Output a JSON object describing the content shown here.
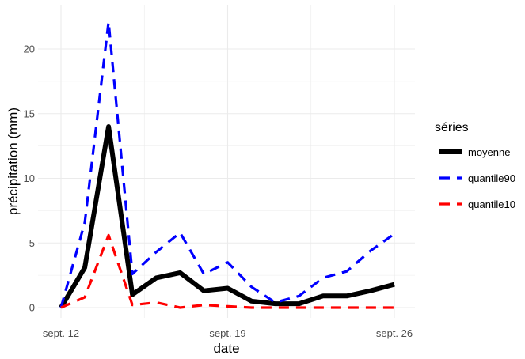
{
  "chart_data": {
    "type": "line",
    "xlabel": "date",
    "ylabel": "précipitation (mm)",
    "x": [
      "2023-09-12",
      "2023-09-13",
      "2023-09-14",
      "2023-09-15",
      "2023-09-16",
      "2023-09-17",
      "2023-09-18",
      "2023-09-19",
      "2023-09-20",
      "2023-09-21",
      "2023-09-22",
      "2023-09-23",
      "2023-09-24",
      "2023-09-25",
      "2023-09-26"
    ],
    "x_ticks": [
      "sept. 12",
      "sept. 19",
      "sept. 26"
    ],
    "y_ticks": [
      "0",
      "5",
      "10",
      "15",
      "20"
    ],
    "ylim": [
      -0.6,
      22.2
    ],
    "grid": true,
    "legend": {
      "title": "séries",
      "placement": "right"
    },
    "series": [
      {
        "name": "moyenne",
        "color": "#000000",
        "style": "solid",
        "values": [
          0,
          3.1,
          14.0,
          1.0,
          2.3,
          2.7,
          1.3,
          1.5,
          0.5,
          0.3,
          0.3,
          0.9,
          0.9,
          1.3,
          1.8
        ]
      },
      {
        "name": "quantile90",
        "color": "#0000ff",
        "style": "dashed",
        "values": [
          0,
          6.6,
          22.1,
          2.6,
          4.3,
          5.8,
          2.6,
          3.5,
          1.6,
          0.4,
          0.9,
          2.3,
          2.8,
          4.4,
          5.7
        ]
      },
      {
        "name": "quantile10",
        "color": "#ff0000",
        "style": "dashed",
        "values": [
          0,
          0.8,
          5.6,
          0.2,
          0.4,
          0.0,
          0.2,
          0.1,
          0.0,
          0.0,
          0.0,
          0.0,
          0.0,
          0.0,
          0.0
        ]
      }
    ]
  }
}
